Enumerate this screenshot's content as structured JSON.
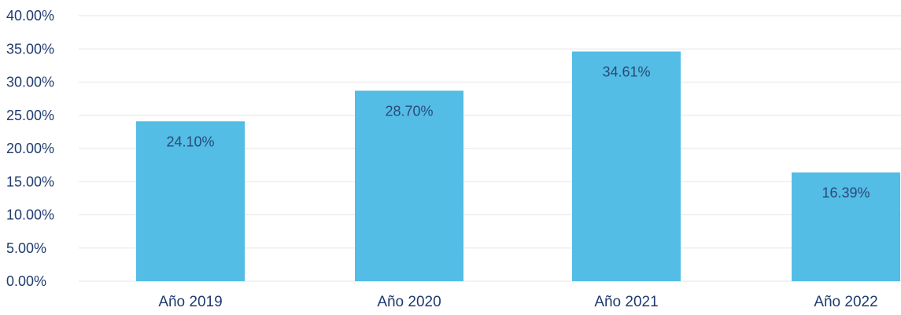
{
  "chart_data": {
    "type": "bar",
    "title": "",
    "xlabel": "",
    "ylabel": "",
    "categories": [
      "Año 2019",
      "Año 2020",
      "Año 2021",
      "Año 2022"
    ],
    "values": [
      24.1,
      28.7,
      34.61,
      16.39
    ],
    "value_labels": [
      "24.10%",
      "28.70%",
      "34.61%",
      "16.39%"
    ],
    "ylim": [
      0,
      40
    ],
    "y_ticks": [
      0,
      5,
      10,
      15,
      20,
      25,
      30,
      35,
      40
    ],
    "y_tick_labels": [
      "0.00%",
      "5.00%",
      "10.00%",
      "15.00%",
      "20.00%",
      "25.00%",
      "30.00%",
      "35.00%",
      "40.00%"
    ],
    "grid": true,
    "legend": "none",
    "colors": {
      "bar": "#53bde6",
      "text": "#1f3b6e",
      "grid": "#e6e6e6"
    }
  }
}
